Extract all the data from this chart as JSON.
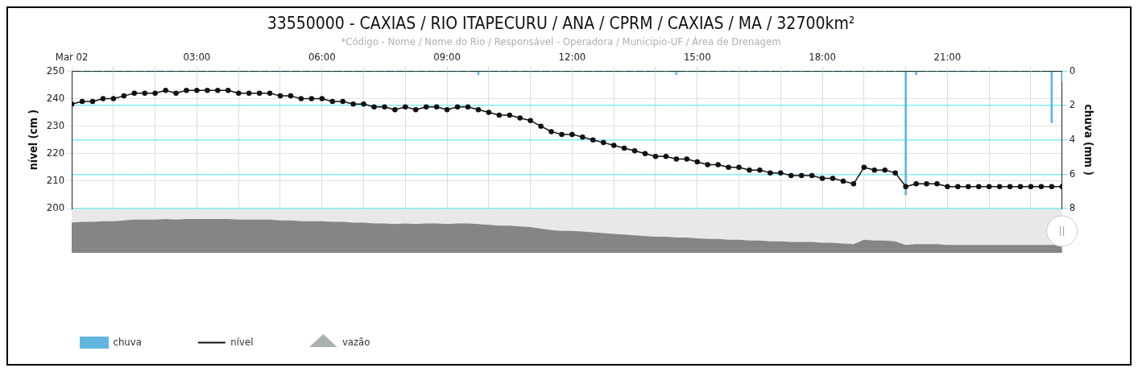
{
  "chart_data": {
    "type": "line",
    "title": "33550000 - CAXIAS / RIO ITAPECURU / ANA / CPRM / CAXIAS / MA / 32700km²",
    "subtitle": "*Código - Nome / Nome do Rio / Responsável - Operadora / Municipio-UF / Área de Drenagem",
    "ylabel": "nível (cm )",
    "y2label": "chuva (mm )",
    "x": [
      0,
      0.25,
      0.5,
      0.75,
      1,
      1.25,
      1.5,
      1.75,
      2,
      2.25,
      2.5,
      2.75,
      3,
      3.25,
      3.5,
      3.75,
      4,
      4.25,
      4.5,
      4.75,
      5,
      5.25,
      5.5,
      5.75,
      6,
      6.25,
      6.5,
      6.75,
      7,
      7.25,
      7.5,
      7.75,
      8,
      8.25,
      8.5,
      8.75,
      9,
      9.25,
      9.5,
      9.75,
      10,
      10.25,
      10.5,
      10.75,
      11,
      11.25,
      11.5,
      11.75,
      12,
      12.25,
      12.5,
      12.75,
      13,
      13.25,
      13.5,
      13.75,
      14,
      14.25,
      14.5,
      14.75,
      15,
      15.25,
      15.5,
      15.75,
      16,
      16.25,
      16.5,
      16.75,
      17,
      17.25,
      17.5,
      17.75,
      18,
      18.25,
      18.5,
      18.75,
      19,
      19.25,
      19.5,
      19.75,
      20,
      20.25,
      20.5,
      20.75,
      21,
      21.25,
      21.5,
      21.75,
      22,
      22.25,
      22.5,
      22.75,
      23,
      23.25,
      23.5,
      23.75
    ],
    "series": [
      {
        "name": "chuva",
        "type": "bar",
        "axis": "y2",
        "color": "#62b6de",
        "values": [
          0,
          0,
          0,
          0,
          0,
          0,
          0,
          0,
          0,
          0,
          0,
          0,
          0,
          0,
          0,
          0,
          0,
          0,
          0,
          0,
          0,
          0,
          0,
          0,
          0,
          0,
          0,
          0,
          0,
          0,
          0,
          0,
          0,
          0,
          0,
          0,
          0,
          0,
          0,
          0.2,
          0,
          0,
          0,
          0,
          0,
          0,
          0,
          0,
          0,
          0,
          0,
          0,
          0,
          0,
          0,
          0,
          0,
          0,
          0.2,
          0,
          0,
          0,
          0,
          0,
          0,
          0,
          0,
          0,
          0,
          0,
          0,
          0,
          0,
          0,
          0,
          0,
          0,
          0,
          0,
          0,
          7.2,
          0.2,
          0,
          0,
          0,
          0,
          0,
          0,
          0,
          0,
          0,
          0,
          0,
          0,
          3.0,
          0.6
        ]
      },
      {
        "name": "nível",
        "color": "#111111",
        "marker": "circle",
        "values": [
          238,
          239,
          239,
          240,
          240,
          241,
          242,
          242,
          242,
          243,
          242,
          243,
          243,
          243,
          243,
          243,
          242,
          242,
          242,
          242,
          241,
          241,
          240,
          240,
          240,
          239,
          239,
          238,
          238,
          237,
          237,
          236,
          237,
          236,
          237,
          237,
          236,
          237,
          237,
          236,
          235,
          234,
          234,
          233,
          232,
          230,
          228,
          227,
          227,
          226,
          225,
          224,
          223,
          222,
          221,
          220,
          219,
          219,
          218,
          218,
          217,
          216,
          216,
          215,
          215,
          214,
          214,
          213,
          213,
          212,
          212,
          212,
          211,
          211,
          210,
          209,
          215,
          214,
          214,
          213,
          208,
          209,
          209,
          209,
          208,
          208,
          208,
          208,
          208,
          208,
          208,
          208,
          208,
          208,
          208,
          208
        ]
      },
      {
        "name": "vazão",
        "type": "line",
        "color": "#a8b0b0",
        "marker": "triangle",
        "values": [
          null,
          null,
          null,
          null,
          null,
          null,
          null,
          null,
          null,
          null,
          null,
          null,
          null,
          null,
          null,
          null,
          null,
          null,
          null,
          null,
          null,
          null,
          null,
          null,
          null,
          null,
          null,
          null,
          null,
          null,
          null,
          null,
          null,
          null,
          null,
          null,
          null,
          null,
          null,
          null,
          null,
          null,
          null,
          null,
          null,
          null,
          null,
          null,
          null,
          null,
          null,
          null,
          null,
          null,
          null,
          null,
          null,
          null,
          null,
          null,
          null,
          null,
          null,
          null,
          null,
          null,
          null,
          null,
          null,
          null,
          null,
          null,
          null,
          null,
          null,
          null,
          null,
          null,
          null,
          null,
          null,
          null,
          null,
          null,
          null,
          null,
          null,
          null,
          null,
          null,
          null,
          null,
          null,
          null,
          null,
          null
        ]
      }
    ],
    "xlim": [
      0,
      23.75
    ],
    "xticks": [
      {
        "value": 0,
        "label": "Mar 02"
      },
      {
        "value": 1,
        "label": null
      },
      {
        "value": 2,
        "label": null
      },
      {
        "value": 3,
        "label": "03:00"
      },
      {
        "value": 4,
        "label": null
      },
      {
        "value": 5,
        "label": null
      },
      {
        "value": 6,
        "label": "06:00"
      },
      {
        "value": 7,
        "label": null
      },
      {
        "value": 8,
        "label": null
      },
      {
        "value": 9,
        "label": "09:00"
      },
      {
        "value": 10,
        "label": null
      },
      {
        "value": 11,
        "label": null
      },
      {
        "value": 12,
        "label": "12:00"
      },
      {
        "value": 13,
        "label": null
      },
      {
        "value": 14,
        "label": null
      },
      {
        "value": 15,
        "label": "15:00"
      },
      {
        "value": 16,
        "label": null
      },
      {
        "value": 17,
        "label": null
      },
      {
        "value": 18,
        "label": "18:00"
      },
      {
        "value": 19,
        "label": null
      },
      {
        "value": 20,
        "label": null
      },
      {
        "value": 21,
        "label": "21:00"
      },
      {
        "value": 22,
        "label": null
      },
      {
        "value": 23,
        "label": null
      }
    ],
    "ylim": [
      200,
      250
    ],
    "yticks": [
      200,
      210,
      220,
      230,
      240,
      250
    ],
    "y2lim": [
      8,
      0
    ],
    "y2ticks": [
      0,
      2,
      4,
      6,
      8
    ],
    "grid": true,
    "legend": "bottom left"
  }
}
